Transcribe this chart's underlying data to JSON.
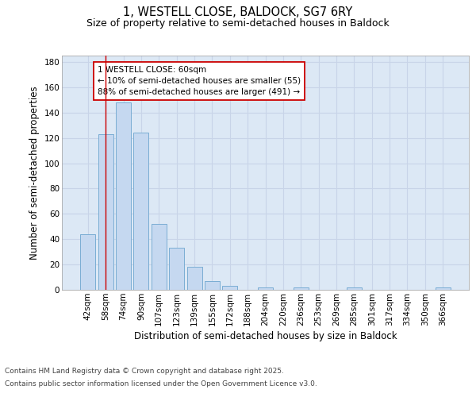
{
  "title": "1, WESTELL CLOSE, BALDOCK, SG7 6RY",
  "subtitle": "Size of property relative to semi-detached houses in Baldock",
  "xlabel": "Distribution of semi-detached houses by size in Baldock",
  "ylabel": "Number of semi-detached properties",
  "categories": [
    "42sqm",
    "58sqm",
    "74sqm",
    "90sqm",
    "107sqm",
    "123sqm",
    "139sqm",
    "155sqm",
    "172sqm",
    "188sqm",
    "204sqm",
    "220sqm",
    "236sqm",
    "253sqm",
    "269sqm",
    "285sqm",
    "301sqm",
    "317sqm",
    "334sqm",
    "350sqm",
    "366sqm"
  ],
  "values": [
    44,
    123,
    148,
    124,
    52,
    33,
    18,
    7,
    3,
    0,
    2,
    0,
    2,
    0,
    0,
    2,
    0,
    0,
    0,
    0,
    2
  ],
  "bar_color": "#c5d8f0",
  "bar_edge_color": "#7aadd4",
  "red_line_color": "#cc0000",
  "annotation_box_color": "#ffffff",
  "annotation_box_edge_color": "#cc0000",
  "annotation_lines": [
    "1 WESTELL CLOSE: 60sqm",
    "← 10% of semi-detached houses are smaller (55)",
    "88% of semi-detached houses are larger (491) →"
  ],
  "grid_color": "#c8d4e8",
  "background_color": "#dce8f5",
  "ylim": [
    0,
    185
  ],
  "yticks": [
    0,
    20,
    40,
    60,
    80,
    100,
    120,
    140,
    160,
    180
  ],
  "title_fontsize": 10.5,
  "subtitle_fontsize": 9,
  "axis_label_fontsize": 8.5,
  "tick_fontsize": 7.5,
  "annotation_fontsize": 7.5,
  "footer_fontsize": 6.5,
  "footer_line1": "Contains HM Land Registry data © Crown copyright and database right 2025.",
  "footer_line2": "Contains public sector information licensed under the Open Government Licence v3.0."
}
